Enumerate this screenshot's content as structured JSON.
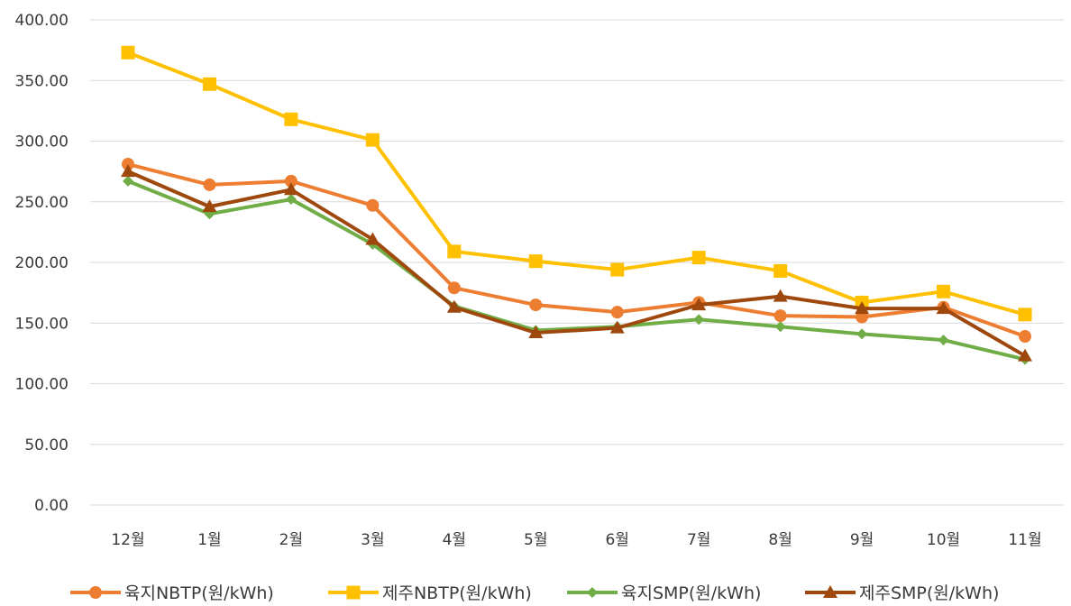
{
  "chart_data": {
    "type": "line",
    "title": "",
    "xlabel": "",
    "ylabel": "",
    "categories": [
      "12월",
      "1월",
      "2월",
      "3월",
      "4월",
      "5월",
      "6월",
      "7월",
      "8월",
      "9월",
      "10월",
      "11월"
    ],
    "ylim": [
      0,
      400
    ],
    "yticks": [
      "0.00",
      "50.00",
      "100.00",
      "150.00",
      "200.00",
      "250.00",
      "300.00",
      "350.00",
      "400.00"
    ],
    "grid": true,
    "legend_position": "bottom",
    "series": [
      {
        "name": "육지NBTP(원/kWh)",
        "color": "#ED7D31",
        "marker": "circle",
        "values": [
          281,
          264,
          267,
          247,
          179,
          165,
          159,
          167,
          156,
          155,
          163,
          139
        ]
      },
      {
        "name": "제주NBTP(원/kWh)",
        "color": "#FFC000",
        "marker": "square",
        "values": [
          373,
          347,
          318,
          301,
          209,
          201,
          194,
          204,
          193,
          167,
          176,
          157
        ]
      },
      {
        "name": "육지SMP(원/kWh)",
        "color": "#70AD47",
        "marker": "diamond",
        "values": [
          267,
          240,
          252,
          215,
          164,
          144,
          147,
          153,
          147,
          141,
          136,
          120
        ]
      },
      {
        "name": "제주SMP(원/kWh)",
        "color": "#9E480E",
        "marker": "triangle",
        "values": [
          275,
          246,
          260,
          219,
          163,
          142,
          146,
          165,
          172,
          162,
          162,
          123
        ]
      }
    ]
  }
}
